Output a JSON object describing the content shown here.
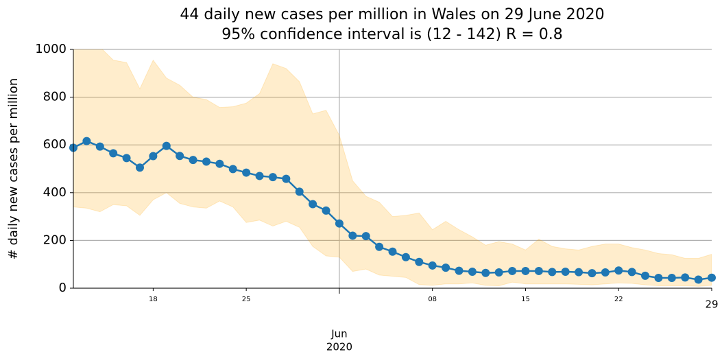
{
  "chart_data": {
    "type": "line",
    "title": "44 daily new cases per million in Wales on 29 June 2020",
    "subtitle": "95% confidence interval is (12 - 142) R = 0.8",
    "y_label": "# daily new cases per million",
    "x": [
      "2020-05-12",
      "2020-05-13",
      "2020-05-14",
      "2020-05-15",
      "2020-05-16",
      "2020-05-17",
      "2020-05-18",
      "2020-05-19",
      "2020-05-20",
      "2020-05-21",
      "2020-05-22",
      "2020-05-23",
      "2020-05-24",
      "2020-05-25",
      "2020-05-26",
      "2020-05-27",
      "2020-05-28",
      "2020-05-29",
      "2020-05-30",
      "2020-05-31",
      "2020-06-01",
      "2020-06-02",
      "2020-06-03",
      "2020-06-04",
      "2020-06-05",
      "2020-06-06",
      "2020-06-07",
      "2020-06-08",
      "2020-06-09",
      "2020-06-10",
      "2020-06-11",
      "2020-06-12",
      "2020-06-13",
      "2020-06-14",
      "2020-06-15",
      "2020-06-16",
      "2020-06-17",
      "2020-06-18",
      "2020-06-19",
      "2020-06-20",
      "2020-06-21",
      "2020-06-22",
      "2020-06-23",
      "2020-06-24",
      "2020-06-25",
      "2020-06-26",
      "2020-06-27",
      "2020-06-28",
      "2020-06-29"
    ],
    "series": [
      {
        "color": "#1f77b4",
        "values": [
          588,
          616,
          593,
          565,
          545,
          505,
          553,
          596,
          554,
          537,
          530,
          521,
          499,
          484,
          470,
          465,
          458,
          404,
          352,
          325,
          271,
          220,
          218,
          173,
          153,
          130,
          110,
          95,
          86,
          73,
          69,
          64,
          66,
          72,
          72,
          72,
          68,
          69,
          67,
          63,
          66,
          74,
          68,
          52,
          43,
          43,
          45,
          36,
          44
        ]
      }
    ],
    "band": {
      "color": "#ffa500",
      "upper": [
        1020,
        1030,
        1010,
        955,
        945,
        835,
        955,
        880,
        850,
        800,
        790,
        757,
        760,
        775,
        815,
        940,
        920,
        865,
        730,
        745,
        640,
        450,
        385,
        360,
        300,
        305,
        315,
        245,
        280,
        245,
        215,
        180,
        195,
        185,
        160,
        205,
        175,
        165,
        160,
        175,
        185,
        185,
        170,
        160,
        145,
        140,
        125,
        125,
        142
      ],
      "lower": [
        340,
        335,
        320,
        350,
        345,
        305,
        370,
        400,
        355,
        340,
        335,
        365,
        340,
        275,
        285,
        260,
        280,
        255,
        175,
        135,
        130,
        70,
        80,
        55,
        50,
        45,
        15,
        12,
        18,
        18,
        22,
        12,
        10,
        25,
        18,
        18,
        18,
        18,
        16,
        14,
        18,
        22,
        20,
        14,
        10,
        10,
        10,
        8,
        12
      ]
    },
    "xlim": [
      "2020-05-12",
      "2020-06-29"
    ],
    "xticks": [
      {
        "value": "2020-05-18",
        "label": "18"
      },
      {
        "value": "2020-05-25",
        "label": "25"
      },
      {
        "value": "2020-06-08",
        "label": "08"
      },
      {
        "value": "2020-06-15",
        "label": "15"
      },
      {
        "value": "2020-06-22",
        "label": "22"
      },
      {
        "value": "2020-06-29",
        "label": "29"
      }
    ],
    "x_major_ticks": [
      {
        "value": "2020-06-01",
        "label": [
          "Jun",
          "2020"
        ]
      }
    ],
    "ylim": [
      0,
      1000
    ],
    "yticks": [
      0,
      200,
      400,
      600,
      800,
      1000
    ],
    "grid": true
  }
}
